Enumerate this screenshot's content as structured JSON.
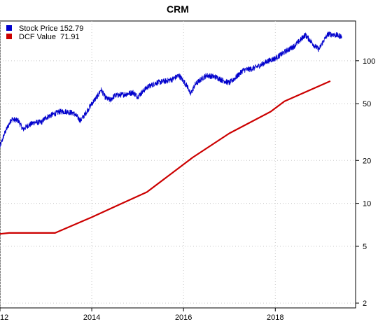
{
  "chart_data": {
    "type": "line",
    "title": "CRM",
    "xlabel": "",
    "ylabel": "",
    "y_scale": "log",
    "ylim": [
      1.85,
      190
    ],
    "xlim": [
      2012.0,
      2019.75
    ],
    "x_ticks": [
      2012,
      2014,
      2016,
      2018
    ],
    "x_tick_labels": [
      "2012",
      "2014",
      "2016",
      "2018"
    ],
    "y_ticks": [
      2,
      5,
      10,
      20,
      50,
      100
    ],
    "y_tick_labels": [
      "2",
      "5",
      "10",
      "20",
      "50",
      "100"
    ],
    "y_axis_side": "right",
    "grid": true,
    "legend": {
      "position": "top-left",
      "entries": [
        {
          "label": "Stock Price 152.79",
          "color": "#0000cc"
        },
        {
          "label": "DCF Value  71.91",
          "color": "#cc0000"
        }
      ]
    },
    "series": [
      {
        "name": "Stock Price 152.79",
        "color": "#0000cc",
        "style": "noisy-daily",
        "points": [
          [
            2012.0,
            25
          ],
          [
            2012.1,
            31
          ],
          [
            2012.25,
            39
          ],
          [
            2012.4,
            38
          ],
          [
            2012.5,
            33
          ],
          [
            2012.6,
            35
          ],
          [
            2012.75,
            37
          ],
          [
            2012.9,
            37
          ],
          [
            2013.0,
            40
          ],
          [
            2013.15,
            42
          ],
          [
            2013.3,
            44
          ],
          [
            2013.45,
            44
          ],
          [
            2013.6,
            43
          ],
          [
            2013.7,
            40
          ],
          [
            2013.75,
            38
          ],
          [
            2013.85,
            42
          ],
          [
            2014.0,
            50
          ],
          [
            2014.15,
            58
          ],
          [
            2014.2,
            63
          ],
          [
            2014.3,
            55
          ],
          [
            2014.4,
            53
          ],
          [
            2014.5,
            57
          ],
          [
            2014.7,
            58
          ],
          [
            2014.9,
            60
          ],
          [
            2015.0,
            56
          ],
          [
            2015.2,
            65
          ],
          [
            2015.4,
            70
          ],
          [
            2015.6,
            72
          ],
          [
            2015.75,
            74
          ],
          [
            2015.9,
            79
          ],
          [
            2016.0,
            72
          ],
          [
            2016.1,
            65
          ],
          [
            2016.15,
            58
          ],
          [
            2016.25,
            68
          ],
          [
            2016.4,
            75
          ],
          [
            2016.5,
            79
          ],
          [
            2016.7,
            77
          ],
          [
            2016.85,
            73
          ],
          [
            2017.0,
            70
          ],
          [
            2017.15,
            77
          ],
          [
            2017.3,
            86
          ],
          [
            2017.5,
            88
          ],
          [
            2017.7,
            94
          ],
          [
            2017.85,
            100
          ],
          [
            2018.0,
            104
          ],
          [
            2018.15,
            112
          ],
          [
            2018.25,
            118
          ],
          [
            2018.4,
            126
          ],
          [
            2018.55,
            140
          ],
          [
            2018.65,
            152
          ],
          [
            2018.75,
            140
          ],
          [
            2018.85,
            128
          ],
          [
            2018.95,
            120
          ],
          [
            2019.05,
            138
          ],
          [
            2019.15,
            154
          ],
          [
            2019.3,
            152
          ],
          [
            2019.45,
            148
          ]
        ]
      },
      {
        "name": "DCF Value  71.91",
        "color": "#cc0000",
        "style": "smooth",
        "points": [
          [
            2011.75,
            6.0
          ],
          [
            2012.2,
            6.2
          ],
          [
            2013.2,
            6.2
          ],
          [
            2014.0,
            8.0
          ],
          [
            2014.6,
            9.8
          ],
          [
            2015.2,
            12.0
          ],
          [
            2015.6,
            15.0
          ],
          [
            2016.2,
            21.0
          ],
          [
            2017.0,
            31.0
          ],
          [
            2017.9,
            44.0
          ],
          [
            2018.2,
            52.0
          ],
          [
            2019.2,
            72.0
          ]
        ]
      }
    ]
  }
}
